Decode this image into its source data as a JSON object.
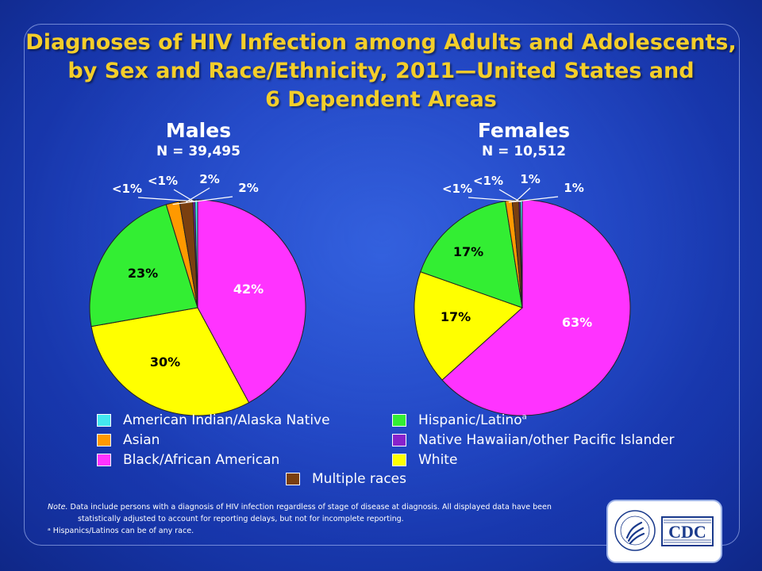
{
  "title": {
    "line1": "Diagnoses of HIV Infection among Adults and Adolescents,",
    "line2": "by Sex and Race/Ethnicity, 2011—United States and",
    "line3": "6 Dependent Areas"
  },
  "chart_data": [
    {
      "type": "pie",
      "title": "Males",
      "subtitle": "N = 39,495",
      "slices": [
        {
          "label": "Black/African American",
          "value": 42,
          "display": "42%",
          "color": "#ff33ff"
        },
        {
          "label": "White",
          "value": 30,
          "display": "30%",
          "color": "#ffff00"
        },
        {
          "label": "Hispanic/Latino",
          "value": 23,
          "display": "23%",
          "color": "#33ee33"
        },
        {
          "label": "Asian",
          "value": 2,
          "display": "2%",
          "color": "#ff9900"
        },
        {
          "label": "Multiple races",
          "value": 2,
          "display": "2%",
          "color": "#7a3f10"
        },
        {
          "label": "Native Hawaiian/other Pacific Islander",
          "value": 0.3,
          "display": "<1%",
          "color": "#8822cc"
        },
        {
          "label": "American Indian/Alaska Native",
          "value": 0.4,
          "display": "<1%",
          "color": "#44e8f0"
        }
      ]
    },
    {
      "type": "pie",
      "title": "Females",
      "subtitle": "N = 10,512",
      "slices": [
        {
          "label": "Black/African American",
          "value": 63,
          "display": "63%",
          "color": "#ff33ff"
        },
        {
          "label": "White",
          "value": 17,
          "display": "17%",
          "color": "#ffff00"
        },
        {
          "label": "Hispanic/Latino",
          "value": 17,
          "display": "17%",
          "color": "#33ee33"
        },
        {
          "label": "Asian",
          "value": 1,
          "display": "1%",
          "color": "#ff9900"
        },
        {
          "label": "Multiple races",
          "value": 1,
          "display": "1%",
          "color": "#7a3f10"
        },
        {
          "label": "Native Hawaiian/other Pacific Islander",
          "value": 0.2,
          "display": "<1%",
          "color": "#8822cc"
        },
        {
          "label": "American Indian/Alaska Native",
          "value": 0.3,
          "display": "<1%",
          "color": "#44e8f0"
        }
      ]
    }
  ],
  "legend": [
    {
      "label": "American Indian/Alaska Native",
      "color": "#44e8f0"
    },
    {
      "label": "Asian",
      "color": "#ff9900"
    },
    {
      "label": "Black/African American",
      "color": "#ff33ff"
    },
    {
      "label": "Hispanic/Latino",
      "sup": "a",
      "color": "#33ee33"
    },
    {
      "label": "Native Hawaiian/other Pacific Islander",
      "color": "#8822cc"
    },
    {
      "label": "White",
      "color": "#ffff00"
    },
    {
      "label": "Multiple races",
      "color": "#7a3f10"
    }
  ],
  "note": {
    "prefix": "Note.",
    "line1": " Data include persons with a diagnosis of HIV infection regardless of stage of disease at diagnosis. All displayed data have been",
    "line2": "statistically adjusted to account for reporting delays,  but not for incomplete reporting.",
    "line3": "ᵃ Hispanics/Latinos can be of any race."
  },
  "logo": {
    "text": "CDC",
    "seal_text": "DEPARTMENT OF HEALTH & HUMAN SERVICES USA"
  }
}
